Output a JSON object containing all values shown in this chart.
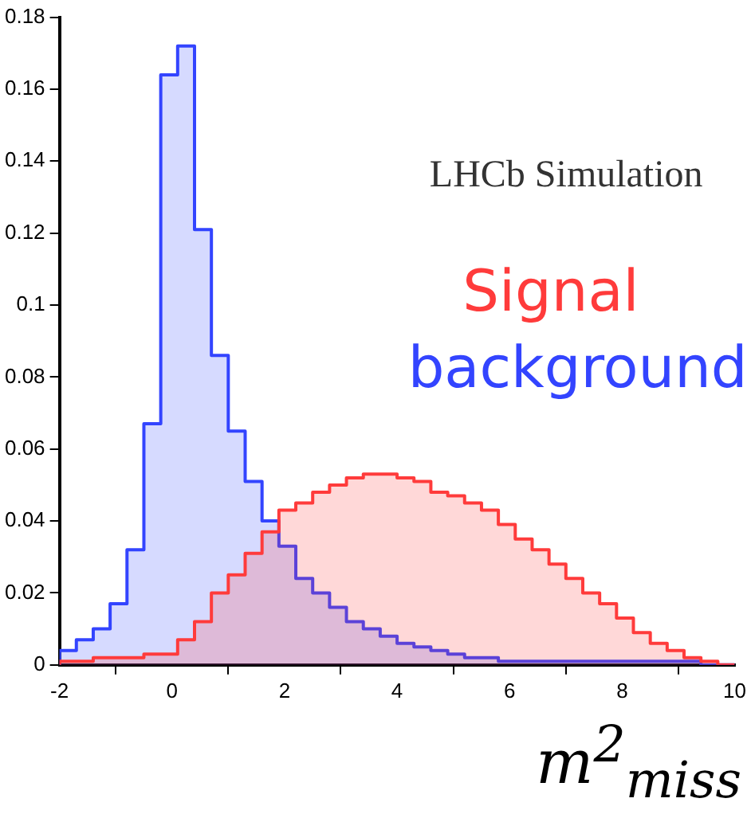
{
  "chart_data": {
    "type": "histogram",
    "xlabel": "m$^{2}$$_{miss}$",
    "annotations": [
      "LHCb Simulation"
    ],
    "bins": [
      -2,
      -1.7,
      -1.4,
      -1.1,
      -0.8,
      -0.5,
      -0.2,
      0.1,
      0.4,
      0.7,
      1,
      1.3,
      1.6,
      1.9,
      2.2,
      2.5,
      2.8,
      3.1,
      3.4,
      3.7,
      4,
      4.3,
      4.6,
      4.9,
      5.2,
      5.5,
      5.8,
      6.1,
      6.4,
      6.7,
      7,
      7.3,
      7.6,
      7.9,
      8.2,
      8.5,
      8.8,
      9.1,
      9.4,
      9.7,
      10
    ],
    "series": [
      {
        "name": "Signal",
        "color": "#ff3b3b",
        "values": [
          0.001,
          0.001,
          0.002,
          0.002,
          0.002,
          0.003,
          0.003,
          0.007,
          0.012,
          0.02,
          0.025,
          0.031,
          0.037,
          0.043,
          0.045,
          0.048,
          0.05,
          0.052,
          0.053,
          0.053,
          0.052,
          0.051,
          0.048,
          0.047,
          0.045,
          0.043,
          0.039,
          0.035,
          0.032,
          0.028,
          0.024,
          0.02,
          0.017,
          0.013,
          0.009,
          0.006,
          0.004,
          0.002,
          0.001,
          0
        ]
      },
      {
        "name": "background",
        "color": "#3344ff",
        "values": [
          0.004,
          0.007,
          0.01,
          0.017,
          0.032,
          0.067,
          0.164,
          0.172,
          0.121,
          0.086,
          0.065,
          0.051,
          0.04,
          0.033,
          0.024,
          0.02,
          0.016,
          0.012,
          0.01,
          0.008,
          0.006,
          0.005,
          0.004,
          0.003,
          0.002,
          0.002,
          0.001,
          0.001,
          0.001,
          0.001,
          0.001,
          0.001,
          0.001,
          0.001,
          0.001,
          0.001,
          0.001,
          0.001,
          0,
          0
        ]
      }
    ],
    "xlim": [
      -2,
      10
    ],
    "xticks": [
      -2,
      0,
      2,
      4,
      6,
      8,
      10
    ],
    "ylim": [
      0,
      0.18
    ],
    "yticks": [
      0,
      0.02,
      0.04,
      0.06,
      0.08,
      0.1,
      0.12,
      0.14,
      0.16,
      0.18
    ],
    "grid": false
  }
}
